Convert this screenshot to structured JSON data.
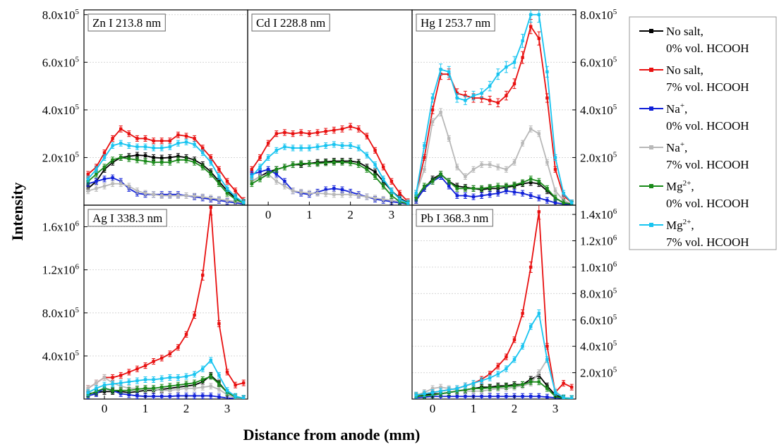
{
  "figure": {
    "xlabel": "Distance from anode (mm)",
    "ylabel": "Intensity"
  },
  "series": [
    {
      "key": "ns0",
      "label1": "No salt,",
      "label1_sup": "",
      "label1_tail": "",
      "label2": "0% vol. HCOOH",
      "color": "#000000"
    },
    {
      "key": "ns7",
      "label1": "No salt,",
      "label1_sup": "",
      "label1_tail": "",
      "label2": "7% vol. HCOOH",
      "color": "#e81010"
    },
    {
      "key": "na0",
      "label1": "Na",
      "label1_sup": "+",
      "label1_tail": ",",
      "label2": "0% vol. HCOOH",
      "color": "#1020d8"
    },
    {
      "key": "na7",
      "label1": "Na",
      "label1_sup": "+",
      "label1_tail": ",",
      "label2": "7% vol. HCOOH",
      "color": "#b8b8b8"
    },
    {
      "key": "mg0",
      "label1": "Mg",
      "label1_sup": "2+",
      "label1_tail": ",",
      "label2": "0% vol. HCOOH",
      "color": "#1a8a1a"
    },
    {
      "key": "mg7",
      "label1": "Mg",
      "label1_sup": "2+",
      "label1_tail": ",",
      "label2": "7% vol. HCOOH",
      "color": "#18c4f0"
    }
  ],
  "chart_data": [
    {
      "type": "line",
      "title": "Zn I 213.8 nm",
      "xlim": [
        -0.5,
        3.5
      ],
      "ylim": [
        0,
        820000
      ],
      "yticks": [
        200000,
        400000,
        600000,
        800000
      ],
      "ytick_labels": [
        {
          "m": "2.0x10",
          "e": "5"
        },
        {
          "m": "4.0x10",
          "e": "5"
        },
        {
          "m": "6.0x10",
          "e": "5"
        },
        {
          "m": "8.0x10",
          "e": "5"
        }
      ],
      "x": [
        -0.4,
        -0.2,
        0,
        0.2,
        0.4,
        0.6,
        0.8,
        1.0,
        1.2,
        1.4,
        1.6,
        1.8,
        2.0,
        2.2,
        2.4,
        2.6,
        2.8,
        3.0,
        3.2,
        3.4
      ],
      "series": [
        {
          "values": [
            70000,
            100000,
            150000,
            180000,
            200000,
            205000,
            210000,
            208000,
            200000,
            198000,
            200000,
            205000,
            200000,
            190000,
            170000,
            140000,
            100000,
            60000,
            30000,
            10000
          ]
        },
        {
          "values": [
            130000,
            160000,
            220000,
            280000,
            320000,
            300000,
            280000,
            280000,
            270000,
            270000,
            270000,
            295000,
            290000,
            280000,
            240000,
            200000,
            150000,
            100000,
            60000,
            20000
          ]
        },
        {
          "values": [
            90000,
            100000,
            110000,
            115000,
            100000,
            70000,
            50000,
            45000,
            45000,
            45000,
            45000,
            45000,
            40000,
            35000,
            30000,
            25000,
            20000,
            15000,
            10000,
            5000
          ]
        },
        {
          "values": [
            60000,
            70000,
            80000,
            90000,
            90000,
            80000,
            60000,
            50000,
            45000,
            40000,
            40000,
            40000,
            40000,
            38000,
            35000,
            30000,
            25000,
            20000,
            15000,
            10000
          ]
        },
        {
          "values": [
            100000,
            130000,
            160000,
            190000,
            200000,
            195000,
            190000,
            185000,
            180000,
            180000,
            180000,
            190000,
            190000,
            180000,
            160000,
            130000,
            90000,
            50000,
            25000,
            10000
          ]
        },
        {
          "values": [
            110000,
            150000,
            200000,
            250000,
            260000,
            250000,
            245000,
            245000,
            240000,
            240000,
            245000,
            260000,
            265000,
            255000,
            220000,
            180000,
            120000,
            70000,
            35000,
            12000
          ]
        }
      ]
    },
    {
      "type": "line",
      "title": "Cd I 228.8 nm",
      "xlim": [
        -0.5,
        3.5
      ],
      "ylim": [
        0,
        820000
      ],
      "x": [
        -0.4,
        -0.2,
        0,
        0.2,
        0.4,
        0.6,
        0.8,
        1.0,
        1.2,
        1.4,
        1.6,
        1.8,
        2.0,
        2.2,
        2.4,
        2.6,
        2.8,
        3.0,
        3.2,
        3.4
      ],
      "series": [
        {
          "values": [
            100000,
            120000,
            140000,
            150000,
            160000,
            170000,
            170000,
            175000,
            180000,
            182000,
            185000,
            185000,
            185000,
            180000,
            160000,
            140000,
            100000,
            60000,
            30000,
            10000
          ]
        },
        {
          "values": [
            150000,
            200000,
            260000,
            300000,
            305000,
            300000,
            305000,
            300000,
            305000,
            310000,
            315000,
            320000,
            330000,
            320000,
            290000,
            230000,
            160000,
            100000,
            50000,
            15000
          ]
        },
        {
          "values": [
            130000,
            140000,
            150000,
            130000,
            100000,
            60000,
            50000,
            45000,
            55000,
            65000,
            70000,
            65000,
            55000,
            45000,
            35000,
            25000,
            20000,
            15000,
            10000,
            5000
          ]
        },
        {
          "values": [
            100000,
            120000,
            130000,
            100000,
            80000,
            60000,
            55000,
            50000,
            50000,
            48000,
            45000,
            45000,
            45000,
            40000,
            35000,
            30000,
            25000,
            20000,
            15000,
            10000
          ]
        },
        {
          "values": [
            90000,
            110000,
            130000,
            150000,
            160000,
            170000,
            175000,
            175000,
            175000,
            178000,
            180000,
            180000,
            178000,
            170000,
            150000,
            120000,
            80000,
            40000,
            15000,
            5000
          ]
        },
        {
          "values": [
            120000,
            160000,
            200000,
            230000,
            245000,
            240000,
            240000,
            240000,
            245000,
            250000,
            255000,
            250000,
            250000,
            240000,
            210000,
            170000,
            110000,
            60000,
            25000,
            8000
          ]
        }
      ]
    },
    {
      "type": "line",
      "title": "Hg I 253.7 nm",
      "xlim": [
        -0.5,
        3.5
      ],
      "ylim": [
        0,
        820000
      ],
      "yticks": [
        200000,
        400000,
        600000,
        800000
      ],
      "ytick_labels": [
        {
          "m": "2.0x10",
          "e": "5"
        },
        {
          "m": "4.0x10",
          "e": "5"
        },
        {
          "m": "6.0x10",
          "e": "5"
        },
        {
          "m": "8.0x10",
          "e": "5"
        }
      ],
      "x": [
        -0.4,
        -0.2,
        0,
        0.2,
        0.4,
        0.6,
        0.8,
        1.0,
        1.2,
        1.4,
        1.6,
        1.8,
        2.0,
        2.2,
        2.4,
        2.6,
        2.8,
        3.0,
        3.2,
        3.4
      ],
      "series": [
        {
          "values": [
            20000,
            70000,
            110000,
            130000,
            100000,
            80000,
            75000,
            70000,
            65000,
            70000,
            70000,
            75000,
            80000,
            90000,
            95000,
            90000,
            60000,
            30000,
            10000,
            5000
          ]
        },
        {
          "values": [
            50000,
            200000,
            400000,
            550000,
            550000,
            470000,
            460000,
            450000,
            450000,
            440000,
            430000,
            460000,
            510000,
            620000,
            750000,
            700000,
            450000,
            150000,
            40000,
            10000
          ]
        },
        {
          "values": [
            20000,
            70000,
            100000,
            120000,
            80000,
            40000,
            40000,
            35000,
            40000,
            45000,
            50000,
            60000,
            55000,
            50000,
            40000,
            30000,
            20000,
            10000,
            5000,
            2000
          ]
        },
        {
          "values": [
            50000,
            150000,
            350000,
            390000,
            280000,
            160000,
            120000,
            150000,
            170000,
            170000,
            160000,
            150000,
            180000,
            260000,
            320000,
            300000,
            180000,
            60000,
            20000,
            5000
          ]
        },
        {
          "values": [
            30000,
            80000,
            100000,
            130000,
            100000,
            70000,
            70000,
            70000,
            70000,
            75000,
            80000,
            80000,
            85000,
            95000,
            110000,
            100000,
            70000,
            30000,
            10000,
            5000
          ]
        },
        {
          "values": [
            50000,
            250000,
            450000,
            570000,
            560000,
            450000,
            440000,
            460000,
            470000,
            500000,
            550000,
            580000,
            600000,
            690000,
            800000,
            800000,
            560000,
            200000,
            50000,
            10000
          ]
        }
      ]
    },
    {
      "type": "line",
      "title": "Ag I 338.3 nm",
      "xlim": [
        -0.5,
        3.5
      ],
      "ylim": [
        0,
        1800000
      ],
      "xticks": [
        0,
        1,
        2,
        3
      ],
      "xtick_labels": [
        "0",
        "1",
        "2",
        "3"
      ],
      "yticks": [
        400000,
        800000,
        1200000,
        1600000
      ],
      "ytick_labels": [
        {
          "m": "4.0x10",
          "e": "5"
        },
        {
          "m": "8.0x10",
          "e": "5"
        },
        {
          "m": "1.2x10",
          "e": "6"
        },
        {
          "m": "1.6x10",
          "e": "6"
        }
      ],
      "x": [
        -0.4,
        -0.2,
        0,
        0.2,
        0.4,
        0.6,
        0.8,
        1.0,
        1.2,
        1.4,
        1.6,
        1.8,
        2.0,
        2.2,
        2.4,
        2.6,
        2.8,
        3.0,
        3.2,
        3.4
      ],
      "series": [
        {
          "values": [
            50000,
            60000,
            70000,
            70000,
            70000,
            60000,
            70000,
            80000,
            80000,
            90000,
            100000,
            110000,
            120000,
            130000,
            160000,
            220000,
            150000,
            60000,
            20000,
            5000
          ]
        },
        {
          "values": [
            100000,
            150000,
            200000,
            200000,
            220000,
            250000,
            280000,
            310000,
            350000,
            380000,
            420000,
            480000,
            600000,
            780000,
            1150000,
            1780000,
            700000,
            250000,
            130000,
            150000
          ]
        },
        {
          "values": [
            30000,
            50000,
            100000,
            80000,
            50000,
            40000,
            30000,
            25000,
            25000,
            25000,
            25000,
            30000,
            30000,
            30000,
            30000,
            30000,
            20000,
            10000,
            5000,
            2000
          ]
        },
        {
          "values": [
            100000,
            150000,
            200000,
            150000,
            120000,
            100000,
            100000,
            90000,
            90000,
            80000,
            80000,
            90000,
            100000,
            100000,
            110000,
            120000,
            90000,
            40000,
            10000,
            5000
          ]
        },
        {
          "values": [
            40000,
            70000,
            100000,
            80000,
            80000,
            80000,
            90000,
            100000,
            100000,
            110000,
            120000,
            130000,
            140000,
            150000,
            180000,
            210000,
            140000,
            60000,
            20000,
            5000
          ]
        },
        {
          "values": [
            60000,
            100000,
            130000,
            140000,
            150000,
            160000,
            170000,
            180000,
            180000,
            190000,
            200000,
            200000,
            210000,
            230000,
            280000,
            360000,
            220000,
            80000,
            25000,
            8000
          ]
        }
      ]
    },
    {
      "type": "line",
      "title": "",
      "xlim": [
        -0.5,
        3.5
      ],
      "ylim": [
        0,
        820000
      ],
      "xticks": [
        0,
        1,
        2,
        3
      ],
      "xtick_labels": [
        "0",
        "1",
        "2",
        "3"
      ],
      "series": []
    },
    {
      "type": "line",
      "title": "Pb I 368.3 nm",
      "xlim": [
        -0.5,
        3.5
      ],
      "ylim": [
        0,
        1470000
      ],
      "xticks": [
        0,
        1,
        2,
        3
      ],
      "xtick_labels": [
        "0",
        "1",
        "2",
        "3"
      ],
      "yticks": [
        200000,
        400000,
        600000,
        800000,
        1000000,
        1200000,
        1400000
      ],
      "ytick_labels": [
        {
          "m": "2.0x10",
          "e": "5"
        },
        {
          "m": "4.0x10",
          "e": "5"
        },
        {
          "m": "6.0x10",
          "e": "5"
        },
        {
          "m": "8.0x10",
          "e": "5"
        },
        {
          "m": "1.0x10",
          "e": "6"
        },
        {
          "m": "1.2x10",
          "e": "6"
        },
        {
          "m": "1.4x10",
          "e": "6"
        }
      ],
      "x": [
        -0.4,
        -0.2,
        0,
        0.2,
        0.4,
        0.6,
        0.8,
        1.0,
        1.2,
        1.4,
        1.6,
        1.8,
        2.0,
        2.2,
        2.4,
        2.6,
        2.8,
        3.0,
        3.2,
        3.4
      ],
      "series": [
        {
          "values": [
            20000,
            30000,
            40000,
            40000,
            50000,
            60000,
            70000,
            80000,
            90000,
            90000,
            100000,
            100000,
            110000,
            110000,
            150000,
            180000,
            100000,
            30000,
            10000,
            5000
          ]
        },
        {
          "values": [
            30000,
            40000,
            50000,
            60000,
            70000,
            80000,
            100000,
            120000,
            150000,
            190000,
            250000,
            320000,
            450000,
            650000,
            1000000,
            1420000,
            400000,
            50000,
            120000,
            90000
          ]
        },
        {
          "values": [
            10000,
            15000,
            20000,
            20000,
            20000,
            20000,
            20000,
            20000,
            20000,
            20000,
            20000,
            20000,
            20000,
            20000,
            20000,
            20000,
            15000,
            10000,
            5000,
            2000
          ]
        },
        {
          "values": [
            30000,
            50000,
            80000,
            90000,
            80000,
            70000,
            60000,
            60000,
            60000,
            70000,
            80000,
            80000,
            90000,
            100000,
            120000,
            200000,
            300000,
            60000,
            10000,
            5000
          ]
        },
        {
          "values": [
            20000,
            25000,
            30000,
            40000,
            50000,
            60000,
            70000,
            80000,
            80000,
            85000,
            90000,
            95000,
            100000,
            110000,
            130000,
            130000,
            80000,
            20000,
            5000,
            2000
          ]
        },
        {
          "values": [
            30000,
            40000,
            50000,
            60000,
            70000,
            80000,
            100000,
            120000,
            140000,
            160000,
            190000,
            230000,
            300000,
            400000,
            550000,
            650000,
            300000,
            50000,
            10000,
            5000
          ]
        }
      ]
    }
  ]
}
